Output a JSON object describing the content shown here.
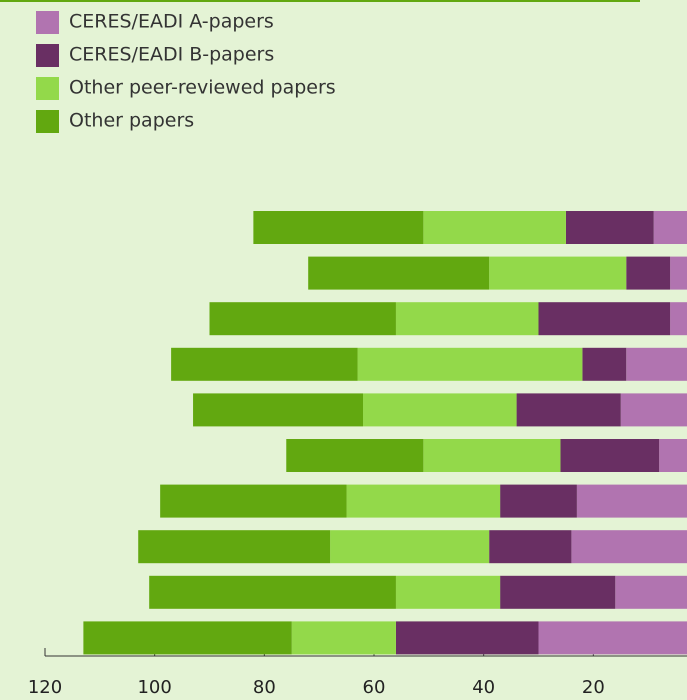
{
  "chart_data": {
    "type": "bar",
    "orientation": "horizontal",
    "stacked": true,
    "categories": [
      null,
      null,
      null,
      null,
      null,
      null,
      null,
      null,
      null,
      null
    ],
    "series": [
      {
        "name": "CERES/EADI A-papers",
        "color": "#b174b0",
        "values": [
          9,
          6,
          6,
          14,
          15,
          8,
          23,
          24,
          16,
          30
        ]
      },
      {
        "name": "CERES/EADI B-papers",
        "color": "#692f63",
        "values": [
          16,
          8,
          24,
          8,
          19,
          18,
          14,
          15,
          21,
          26
        ]
      },
      {
        "name": "Other peer-reviewed papers",
        "color": "#93d94a",
        "values": [
          26,
          25,
          26,
          41,
          28,
          25,
          28,
          29,
          19,
          19
        ]
      },
      {
        "name": "Other papers",
        "color": "#62a810",
        "values": [
          31,
          33,
          34,
          34,
          31,
          25,
          34,
          35,
          45,
          38
        ]
      }
    ],
    "xlim": [
      120,
      0
    ],
    "xticks": [
      120,
      100,
      80,
      60,
      40,
      20
    ],
    "legend": "top-left"
  }
}
